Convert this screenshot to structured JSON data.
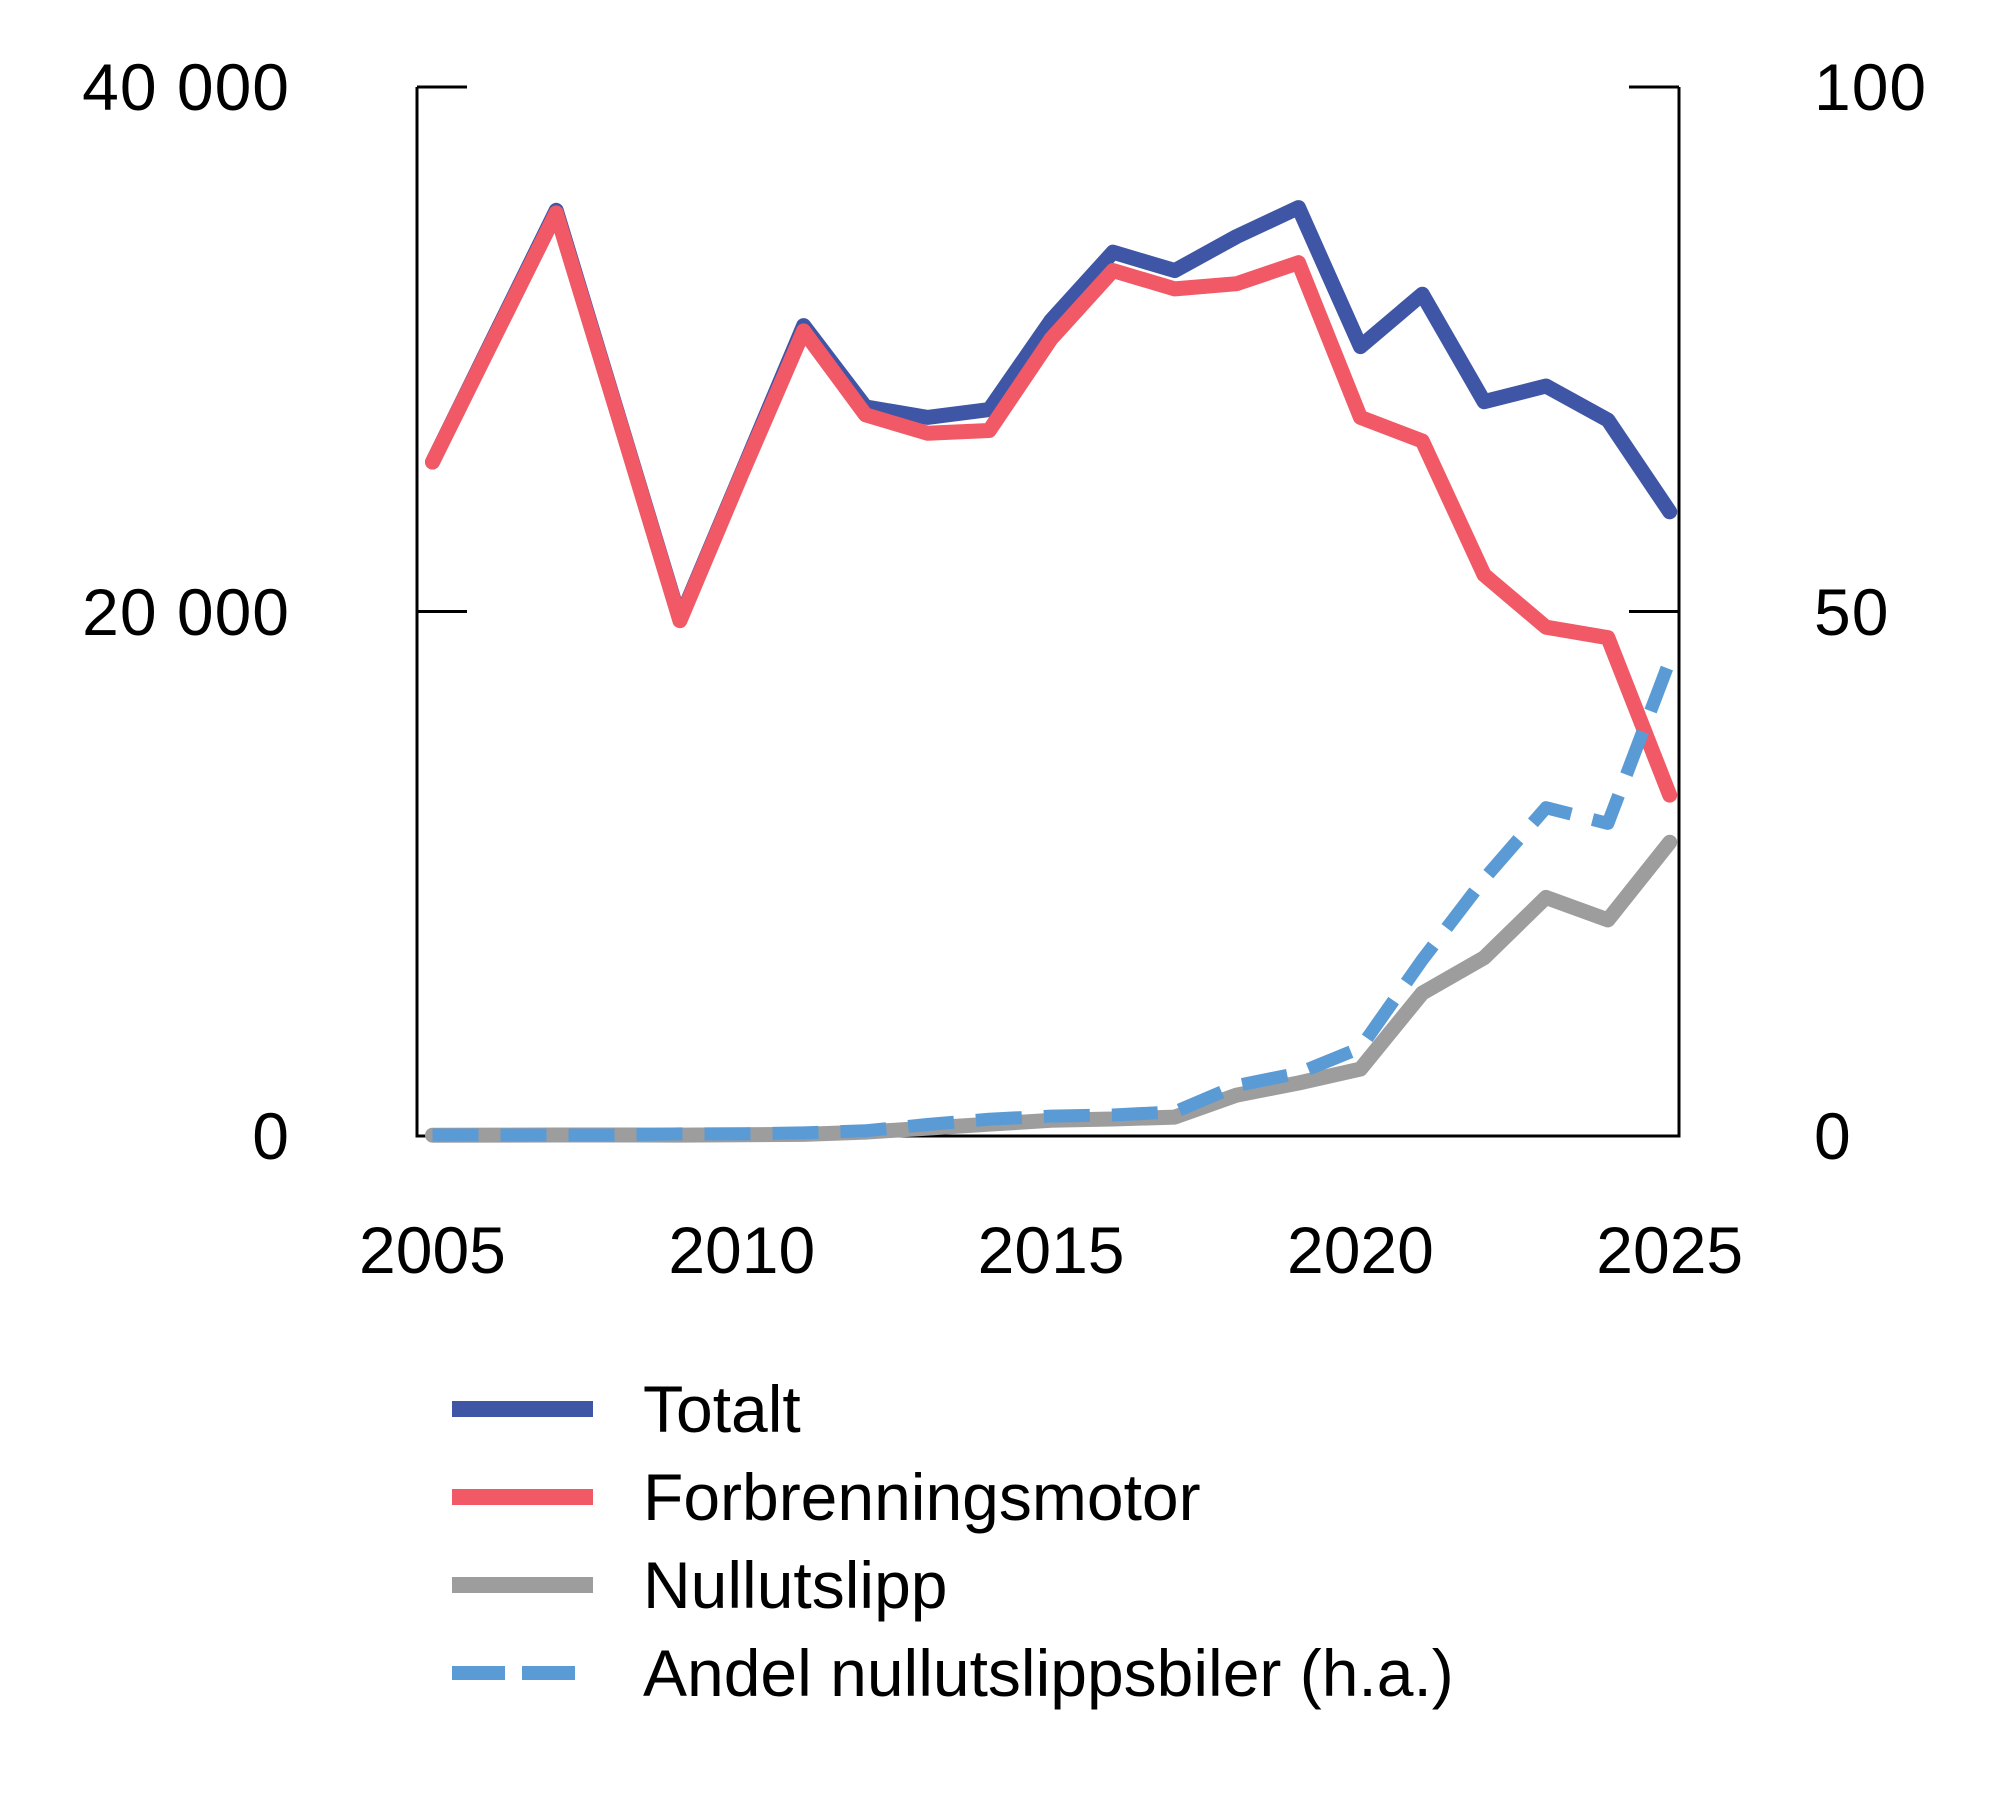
{
  "figure": {
    "background": "#ffffff",
    "axis_color": "#000000",
    "text_color": "#000000"
  },
  "chart_data": {
    "type": "line",
    "x": [
      2005,
      2006,
      2007,
      2008,
      2009,
      2010,
      2011,
      2012,
      2013,
      2014,
      2015,
      2016,
      2017,
      2018,
      2019,
      2020,
      2021,
      2022,
      2023,
      2024,
      2025
    ],
    "series": [
      {
        "name": "Totalt",
        "color": "#3f55a5",
        "axis": "left",
        "style": "solid",
        "values": [
          25700,
          30500,
          35300,
          27500,
          19700,
          25300,
          30900,
          27800,
          27400,
          27700,
          31100,
          33700,
          33000,
          34300,
          35400,
          30100,
          32100,
          28000,
          28600,
          27300,
          23800
        ]
      },
      {
        "name": "Forbrenningsmotor",
        "color": "#f05965",
        "axis": "left",
        "style": "solid",
        "values": [
          25700,
          30450,
          35200,
          27450,
          19650,
          25250,
          30700,
          27500,
          26800,
          26900,
          30400,
          33000,
          32300,
          32500,
          33300,
          27400,
          26500,
          21400,
          19400,
          19000,
          13000
        ]
      },
      {
        "name": "Nullutslipp",
        "color": "#9d9d9d",
        "axis": "left",
        "style": "solid",
        "values": [
          30,
          35,
          40,
          40,
          35,
          45,
          60,
          150,
          300,
          450,
          600,
          650,
          720,
          1560,
          2020,
          2550,
          5450,
          6800,
          9100,
          8240,
          11200
        ]
      },
      {
        "name": "Andel nullutslippsbiler (h.a.)",
        "color": "#5b9bd5",
        "axis": "right",
        "style": "dashed",
        "values": [
          0.1,
          0.1,
          0.1,
          0.1,
          0.2,
          0.2,
          0.3,
          0.5,
          1.1,
          1.6,
          1.9,
          2.0,
          2.3,
          4.8,
          6.0,
          8.4,
          16.8,
          24.5,
          31.3,
          29.8,
          45.3
        ]
      }
    ],
    "left_axis": {
      "min": 0,
      "max": 40000,
      "tick_values": [
        40000,
        20000,
        0
      ],
      "ticks": [
        "40 000",
        "20 000",
        "0"
      ]
    },
    "right_axis": {
      "min": 0,
      "max": 100,
      "tick_values": [
        100,
        50,
        0
      ],
      "ticks": [
        "100",
        "50",
        "0"
      ]
    },
    "x_ticks": [
      "2005",
      "2010",
      "2015",
      "2020",
      "2025"
    ],
    "grid": false,
    "legend_position": "bottom-left"
  }
}
